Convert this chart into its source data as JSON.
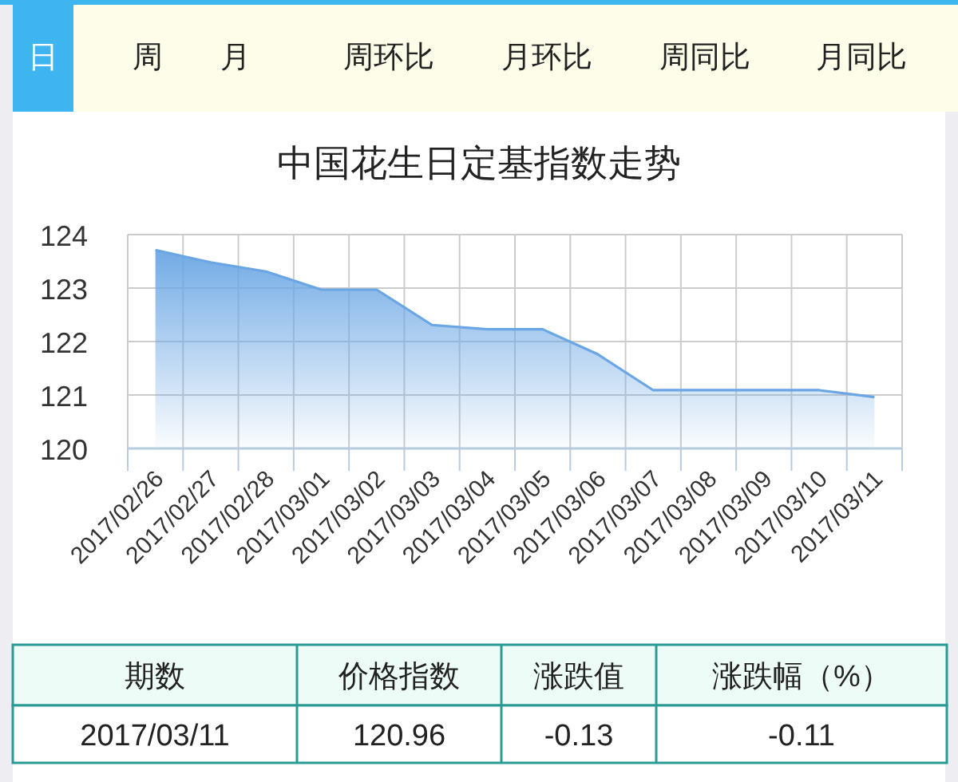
{
  "chart_data": [
    {
      "type": "other",
      "annotations": [
        "日",
        "周",
        "月",
        "周环比",
        "月环比",
        "周同比",
        "月同比"
      ]
    },
    {
      "type": "area",
      "title": "中国花生日定基指数走势",
      "categories": [
        "2017/02/26",
        "2017/02/27",
        "2017/02/28",
        "2017/03/01",
        "2017/03/02",
        "2017/03/03",
        "2017/03/04",
        "2017/03/05",
        "2017/03/06",
        "2017/03/07",
        "2017/03/08",
        "2017/03/09",
        "2017/03/10",
        "2017/03/11"
      ],
      "series": [
        {
          "color": "#6aa6e4",
          "values": [
            123.71,
            123.48,
            123.31,
            122.97,
            122.97,
            122.31,
            122.23,
            122.23,
            121.76,
            121.09,
            121.09,
            121.09,
            121.09,
            120.96
          ]
        }
      ],
      "ylim": [
        120,
        124
      ],
      "yticks": [
        120,
        121,
        122,
        123,
        124
      ],
      "grid": true,
      "marker": "none",
      "line_style": "solid"
    },
    {
      "type": "other",
      "annotations": [
        "期数",
        "价格指数",
        "涨跌值",
        "涨跌幅（%）",
        "2017/03/11",
        "120.96",
        "-0.13",
        "-0.11"
      ]
    }
  ]
}
